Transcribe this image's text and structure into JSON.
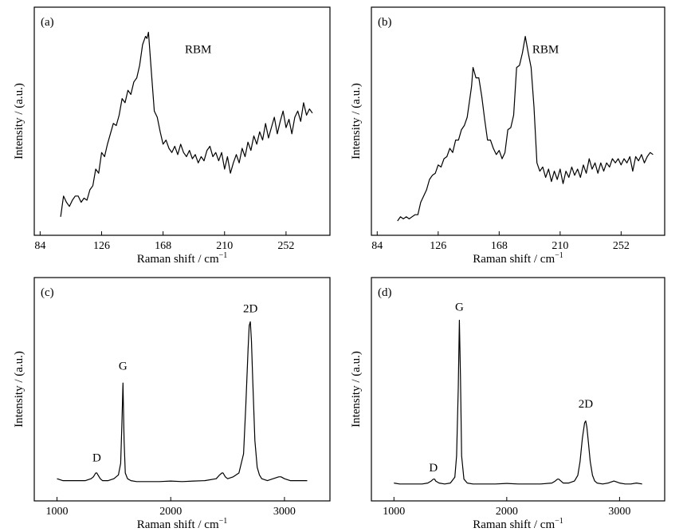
{
  "chart_data": [
    {
      "panel_label": "(a)",
      "type": "line",
      "xlabel": "Raman shift / cm",
      "xlabel_sup": "−1",
      "ylabel": "Intensity / (a.u.)",
      "xlim": [
        80,
        282
      ],
      "ylim": [
        0,
        1
      ],
      "xticks": [
        84,
        126,
        168,
        210,
        252
      ],
      "xtick_labels": [
        "84",
        "126",
        "168",
        "210",
        "252"
      ],
      "annotations": [
        {
          "text": "RBM",
          "x": 192,
          "y": 0.86
        }
      ],
      "series": [
        {
          "x": [
            98,
            100,
            102,
            104,
            106,
            108,
            110,
            112,
            114,
            116,
            118,
            120,
            122,
            124,
            126,
            128,
            130,
            132,
            134,
            136,
            138,
            140,
            142,
            144,
            146,
            148,
            150,
            152,
            154,
            156,
            157,
            158,
            160,
            162,
            164,
            166,
            168,
            170,
            172,
            174,
            176,
            178,
            180,
            182,
            184,
            186,
            188,
            190,
            192,
            194,
            196,
            198,
            200,
            202,
            204,
            206,
            208,
            210,
            212,
            214,
            216,
            218,
            220,
            222,
            224,
            226,
            228,
            230,
            232,
            234,
            236,
            238,
            240,
            242,
            244,
            246,
            248,
            250,
            252,
            254,
            256,
            258,
            260,
            262,
            264,
            266,
            268,
            270
          ],
          "y": [
            0.07,
            0.17,
            0.14,
            0.12,
            0.15,
            0.17,
            0.17,
            0.14,
            0.16,
            0.15,
            0.2,
            0.22,
            0.3,
            0.28,
            0.38,
            0.36,
            0.42,
            0.47,
            0.52,
            0.51,
            0.56,
            0.64,
            0.62,
            0.68,
            0.66,
            0.72,
            0.74,
            0.8,
            0.9,
            0.94,
            0.93,
            0.96,
            0.77,
            0.58,
            0.55,
            0.48,
            0.42,
            0.44,
            0.4,
            0.38,
            0.41,
            0.37,
            0.42,
            0.38,
            0.36,
            0.39,
            0.35,
            0.37,
            0.33,
            0.36,
            0.34,
            0.39,
            0.41,
            0.36,
            0.38,
            0.34,
            0.38,
            0.3,
            0.36,
            0.28,
            0.33,
            0.37,
            0.33,
            0.4,
            0.36,
            0.43,
            0.39,
            0.46,
            0.42,
            0.48,
            0.44,
            0.52,
            0.45,
            0.5,
            0.55,
            0.47,
            0.53,
            0.58,
            0.5,
            0.54,
            0.47,
            0.55,
            0.58,
            0.53,
            0.62,
            0.56,
            0.59,
            0.57
          ]
        }
      ]
    },
    {
      "panel_label": "(b)",
      "type": "line",
      "xlabel": "Raman shift / cm",
      "xlabel_sup": "−1",
      "ylabel": "Intensity / (a.u.)",
      "xlim": [
        80,
        282
      ],
      "ylim": [
        0,
        1
      ],
      "xticks": [
        84,
        126,
        168,
        210,
        252
      ],
      "xtick_labels": [
        "84",
        "126",
        "168",
        "210",
        "252"
      ],
      "annotations": [
        {
          "text": "RBM",
          "x": 200,
          "y": 0.86
        }
      ],
      "series": [
        {
          "x": [
            98,
            100,
            102,
            104,
            106,
            108,
            110,
            112,
            114,
            116,
            118,
            120,
            122,
            124,
            126,
            128,
            130,
            132,
            134,
            136,
            138,
            140,
            142,
            144,
            146,
            148,
            149,
            150,
            152,
            154,
            156,
            158,
            160,
            162,
            164,
            166,
            168,
            170,
            172,
            174,
            176,
            178,
            180,
            182,
            184,
            186,
            188,
            190,
            192,
            194,
            196,
            198,
            200,
            202,
            204,
            206,
            208,
            210,
            212,
            214,
            216,
            218,
            220,
            222,
            224,
            226,
            228,
            230,
            232,
            234,
            236,
            238,
            240,
            242,
            244,
            246,
            248,
            250,
            252,
            254,
            256,
            258,
            260,
            262,
            264,
            266,
            268,
            270,
            272,
            274
          ],
          "y": [
            0.05,
            0.07,
            0.06,
            0.07,
            0.06,
            0.07,
            0.08,
            0.08,
            0.14,
            0.17,
            0.2,
            0.25,
            0.27,
            0.28,
            0.32,
            0.31,
            0.35,
            0.36,
            0.4,
            0.38,
            0.44,
            0.44,
            0.49,
            0.51,
            0.55,
            0.65,
            0.7,
            0.79,
            0.74,
            0.74,
            0.65,
            0.54,
            0.44,
            0.44,
            0.4,
            0.37,
            0.39,
            0.35,
            0.38,
            0.49,
            0.5,
            0.56,
            0.79,
            0.8,
            0.86,
            0.94,
            0.86,
            0.79,
            0.6,
            0.33,
            0.29,
            0.31,
            0.26,
            0.3,
            0.24,
            0.29,
            0.25,
            0.3,
            0.23,
            0.29,
            0.26,
            0.31,
            0.27,
            0.3,
            0.26,
            0.32,
            0.28,
            0.35,
            0.3,
            0.33,
            0.28,
            0.33,
            0.29,
            0.33,
            0.31,
            0.35,
            0.33,
            0.35,
            0.32,
            0.35,
            0.33,
            0.36,
            0.29,
            0.36,
            0.34,
            0.37,
            0.33,
            0.36,
            0.38,
            0.37
          ]
        }
      ]
    },
    {
      "panel_label": "(c)",
      "type": "line",
      "xlabel": "Raman shift / cm",
      "xlabel_sup": "−1",
      "ylabel": "Intensity / (a.u.)",
      "xlim": [
        800,
        3400
      ],
      "ylim": [
        0,
        1
      ],
      "xticks": [
        1000,
        2000,
        3000
      ],
      "xtick_labels": [
        "1000",
        "2000",
        "3000"
      ],
      "annotations": [
        {
          "text": "D",
          "x": 1350,
          "y": 0.11
        },
        {
          "text": "G",
          "x": 1580,
          "y": 0.59
        },
        {
          "text": "2D",
          "x": 2700,
          "y": 0.89
        }
      ],
      "series": [
        {
          "x": [
            1000,
            1050,
            1100,
            1150,
            1200,
            1250,
            1300,
            1320,
            1340,
            1350,
            1360,
            1380,
            1400,
            1450,
            1500,
            1540,
            1560,
            1570,
            1580,
            1590,
            1600,
            1620,
            1650,
            1700,
            1800,
            1900,
            2000,
            2100,
            2200,
            2300,
            2400,
            2430,
            2450,
            2460,
            2480,
            2500,
            2550,
            2600,
            2640,
            2660,
            2680,
            2690,
            2700,
            2710,
            2720,
            2740,
            2760,
            2780,
            2800,
            2850,
            2900,
            2950,
            2970,
            3000,
            3050,
            3100,
            3150,
            3200
          ],
          "y": [
            0.02,
            0.01,
            0.01,
            0.01,
            0.01,
            0.01,
            0.02,
            0.03,
            0.05,
            0.05,
            0.04,
            0.02,
            0.01,
            0.01,
            0.02,
            0.04,
            0.1,
            0.3,
            0.52,
            0.22,
            0.05,
            0.02,
            0.01,
            0.005,
            0.005,
            0.005,
            0.008,
            0.005,
            0.008,
            0.01,
            0.02,
            0.04,
            0.05,
            0.05,
            0.03,
            0.02,
            0.03,
            0.05,
            0.15,
            0.4,
            0.7,
            0.82,
            0.84,
            0.74,
            0.55,
            0.22,
            0.08,
            0.04,
            0.02,
            0.01,
            0.02,
            0.03,
            0.03,
            0.02,
            0.01,
            0.01,
            0.01,
            0.01
          ]
        }
      ]
    },
    {
      "panel_label": "(d)",
      "type": "line",
      "xlabel": "Raman shift / cm",
      "xlabel_sup": "−1",
      "ylabel": "Intensity / (a.u.)",
      "xlim": [
        800,
        3400
      ],
      "ylim": [
        0,
        1
      ],
      "xticks": [
        1000,
        2000,
        3000
      ],
      "xtick_labels": [
        "1000",
        "2000",
        "3000"
      ],
      "annotations": [
        {
          "text": "D",
          "x": 1350,
          "y": 0.07
        },
        {
          "text": "G",
          "x": 1580,
          "y": 0.9
        },
        {
          "text": "2D",
          "x": 2700,
          "y": 0.4
        }
      ],
      "series": [
        {
          "x": [
            1000,
            1050,
            1100,
            1150,
            1200,
            1250,
            1300,
            1330,
            1350,
            1360,
            1370,
            1400,
            1450,
            1500,
            1540,
            1555,
            1570,
            1580,
            1590,
            1600,
            1620,
            1650,
            1700,
            1800,
            1900,
            2000,
            2100,
            2200,
            2300,
            2400,
            2430,
            2450,
            2460,
            2480,
            2500,
            2550,
            2600,
            2630,
            2650,
            2670,
            2690,
            2700,
            2710,
            2720,
            2740,
            2760,
            2780,
            2800,
            2850,
            2900,
            2950,
            3000,
            3050,
            3100,
            3150,
            3200
          ],
          "y": [
            0.01,
            0.005,
            0.005,
            0.005,
            0.005,
            0.005,
            0.01,
            0.02,
            0.03,
            0.03,
            0.02,
            0.01,
            0.005,
            0.01,
            0.04,
            0.15,
            0.5,
            0.85,
            0.55,
            0.15,
            0.03,
            0.01,
            0.005,
            0.005,
            0.005,
            0.008,
            0.005,
            0.005,
            0.005,
            0.01,
            0.02,
            0.03,
            0.03,
            0.02,
            0.01,
            0.01,
            0.02,
            0.05,
            0.12,
            0.24,
            0.32,
            0.33,
            0.3,
            0.24,
            0.12,
            0.05,
            0.02,
            0.01,
            0.005,
            0.01,
            0.02,
            0.01,
            0.005,
            0.005,
            0.01,
            0.005
          ]
        }
      ]
    }
  ]
}
